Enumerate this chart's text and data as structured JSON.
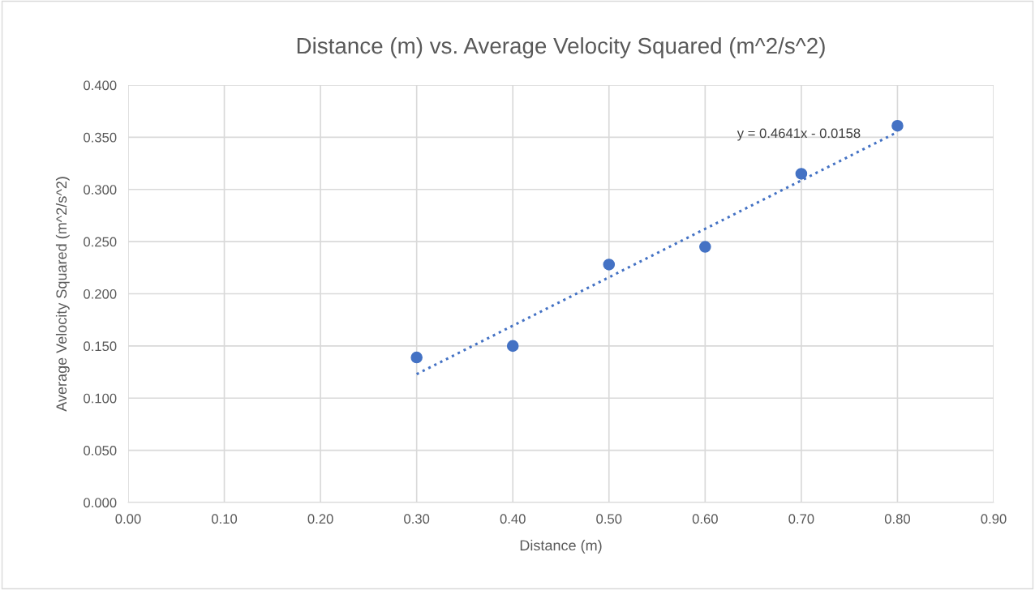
{
  "chart_data": {
    "type": "scatter",
    "title": "Distance (m) vs. Average Velocity Squared (m^2/s^2)",
    "xlabel": "Distance (m)",
    "ylabel": "Average Velocity Squared (m^2/s^2)",
    "series": [
      {
        "color": "#4472c4",
        "x": [
          0.3,
          0.4,
          0.5,
          0.6,
          0.7,
          0.8
        ],
        "values": [
          0.139,
          0.15,
          0.228,
          0.245,
          0.315,
          0.361
        ],
        "marker": "circle"
      },
      {
        "type": "line",
        "color": "#4472c4",
        "x": [
          0.3,
          0.8
        ],
        "values": [
          0.123,
          0.355
        ],
        "line_style": "dotted",
        "marker": "none"
      }
    ],
    "annotations": [
      "y = 0.4641x - 0.0158"
    ],
    "xlim": [
      0,
      0.9
    ],
    "xticks": [
      {
        "value": 0,
        "label": "0.00"
      },
      {
        "value": 0.1,
        "label": "0.10"
      },
      {
        "value": 0.2,
        "label": "0.20"
      },
      {
        "value": 0.3,
        "label": "0.30"
      },
      {
        "value": 0.4,
        "label": "0.40"
      },
      {
        "value": 0.5,
        "label": "0.50"
      },
      {
        "value": 0.6,
        "label": "0.60"
      },
      {
        "value": 0.7,
        "label": "0.70"
      },
      {
        "value": 0.8,
        "label": "0.80"
      },
      {
        "value": 0.9,
        "label": "0.90"
      }
    ],
    "ylim": [
      0,
      0.4
    ],
    "yticks": [
      {
        "value": 0,
        "label": "0.000"
      },
      {
        "value": 0.05,
        "label": "0.050"
      },
      {
        "value": 0.1,
        "label": "0.100"
      },
      {
        "value": 0.15,
        "label": "0.150"
      },
      {
        "value": 0.2,
        "label": "0.200"
      },
      {
        "value": 0.25,
        "label": "0.250"
      },
      {
        "value": 0.3,
        "label": "0.300"
      },
      {
        "value": 0.35,
        "label": "0.350"
      },
      {
        "value": 0.4,
        "label": "0.400"
      }
    ],
    "grid": true
  }
}
